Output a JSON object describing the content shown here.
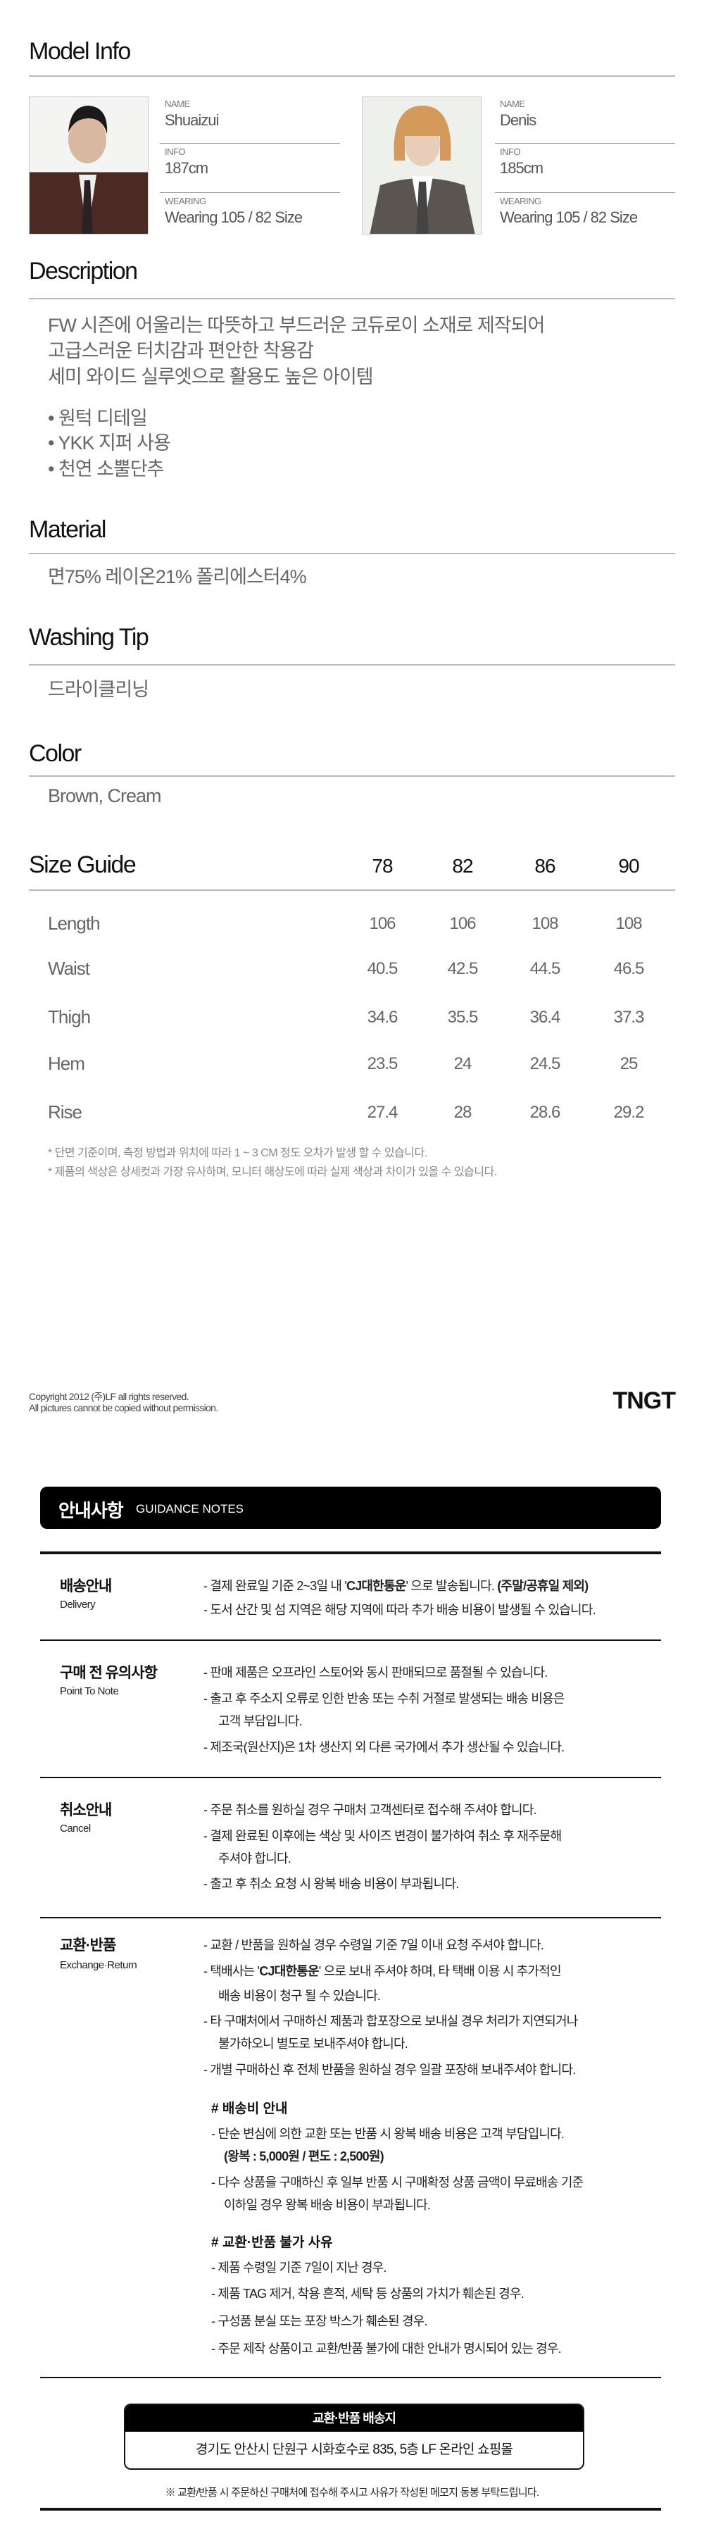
{
  "model_info": {
    "title": "Model Info",
    "models": [
      {
        "name_label": "NAME",
        "name": "Shuaizui",
        "info_label": "INFO",
        "info": "187cm",
        "wearing_label": "WEARING",
        "wearing": "Wearing 105 / 82 Size"
      },
      {
        "name_label": "NAME",
        "name": "Denis",
        "info_label": "INFO",
        "info": "185cm",
        "wearing_label": "WEARING",
        "wearing": "Wearing 105 / 82 Size"
      }
    ]
  },
  "description": {
    "title": "Description",
    "lines": [
      "FW 시즌에 어울리는 따뜻하고 부드러운 코듀로이 소재로 제작되어",
      "고급스러운 터치감과 편안한 착용감",
      "세미 와이드 실루엣으로 활용도 높은 아이템"
    ],
    "bullets": [
      "• 원턱 디테일",
      "• YKK 지퍼 사용",
      "• 천연 소뿔단추"
    ]
  },
  "material": {
    "title": "Material",
    "text": "면75% 레이온21% 폴리에스터4%"
  },
  "washing": {
    "title": "Washing Tip",
    "text": "드라이클리닝"
  },
  "color": {
    "title": "Color",
    "text": "Brown, Cream"
  },
  "size_guide": {
    "title": "Size Guide",
    "sizes": [
      "78",
      "82",
      "86",
      "90"
    ],
    "rows": [
      {
        "label": "Length",
        "values": [
          "106",
          "106",
          "108",
          "108"
        ]
      },
      {
        "label": "Waist",
        "values": [
          "40.5",
          "42.5",
          "44.5",
          "46.5"
        ]
      },
      {
        "label": "Thigh",
        "values": [
          "34.6",
          "35.5",
          "36.4",
          "37.3"
        ]
      },
      {
        "label": "Hem",
        "values": [
          "23.5",
          "24",
          "24.5",
          "25"
        ]
      },
      {
        "label": "Rise",
        "values": [
          "27.4",
          "28",
          "28.6",
          "29.2"
        ]
      }
    ],
    "notes": [
      "* 단면 기준이며, 측정 방법과 위치에 따라 1 ~ 3 CM 정도 오차가 발생 할 수 있습니다.",
      "* 제품의 색상은 상세컷과 가장 유사하며, 모니터 해상도에 따라 실제 색상과 차이가 있을 수 있습니다."
    ]
  },
  "footer": {
    "copyright": "Copyright 2012 (주)LF all rights reserved.",
    "permission": "All pictures cannot be copied without permission.",
    "logo": "TNGT"
  },
  "guidance": {
    "title_ko": "안내사항",
    "title_en": "GUIDANCE NOTES",
    "delivery": {
      "label": "배송안내",
      "sub": "Delivery",
      "i1a": "- 결제 완료일 기준 2~3일 내 '",
      "i1b": "CJ대한통운",
      "i1c": "' 으로 발송됩니다. ",
      "i1d": "(주말/공휴일 제외)",
      "i2": "- 도서 산간 및 섬 지역은 해당 지역에 따라 추가 배송 비용이 발생될 수 있습니다."
    },
    "point": {
      "label": "구매 전 유의사항",
      "sub": "Point To Note",
      "items": [
        "- 판매 제품은 오프라인 스토어와 동시 판매되므로 품절될 수 있습니다.",
        "- 출고 후 주소지 오류로 인한 반송 또는 수취 거절로 발생되는 배송 비용은",
        "고객 부담입니다.",
        "- 제조국(원산지)은 1차 생산지 외 다른 국가에서 추가 생산될 수 있습니다."
      ]
    },
    "cancel": {
      "label": "취소안내",
      "sub": "Cancel",
      "items": [
        "- 주문 취소를 원하실 경우 구매처 고객센터로 접수해 주셔야 합니다.",
        "- 결제 완료된 이후에는 색상 및 사이즈 변경이 불가하여 취소 후 재주문해",
        "주셔야 합니다.",
        "- 출고 후 취소 요청 시 왕복 배송 비용이 부과됩니다."
      ]
    },
    "exchange": {
      "label": "교환·반품",
      "sub": "Exchange·Return",
      "i1": "- 교환 / 반품을 원하실 경우 수령일 기준 7일 이내 요청 주셔야 합니다.",
      "i2a": "- 택배사는 '",
      "i2b": "CJ대한통운",
      "i2c": "' 으로 보내 주셔야 하며, 타 택배 이용 시 추가적인",
      "i2d": "배송 비용이 청구 될 수 있습니다.",
      "i3": "- 타 구매처에서 구매하신 제품과 합포장으로 보내실 경우 처리가 지연되거나",
      "i3b": "불가하오니 별도로 보내주셔야 합니다.",
      "i4": "- 개별 구매하신 후 전체 반품을 원하실 경우 일괄 포장해 보내주셔야 합니다.",
      "fee_title": "# 배송비 안내",
      "fee": [
        "- 단순 변심에 의한 교환 또는 반품 시 왕복 배송 비용은 고객 부담입니다.",
        "(왕복 : 5,000원 / 편도 : 2,500원)",
        "- 다수 상품을 구매하신 후 일부 반품 시 구매확정 상품 금액이 무료배송 기준",
        "이하일 경우 왕복 배송 비용이 부과됩니다."
      ],
      "no_title": "# 교환·반품 불가 사유",
      "no": [
        "- 제품 수령일 기준 7일이 지난 경우.",
        "- 제품 TAG 제거, 착용 흔적, 세탁 등 상품의 가치가 훼손된 경우.",
        "- 구성품 분실 또는 포장 박스가 훼손된 경우.",
        "- 주문 제작 상품이고 교환/반품 불가에 대한 안내가 명시되어 있는 경우."
      ]
    },
    "address": {
      "title": "교환·반품 배송지",
      "text": "경기도 안산시 단원구 시화호수로 835, 5층 LF 온라인 쇼핑몰",
      "note": "※ 교환/반품 시 주문하신 구매처에 접수해 주시고 사유가 작성된 메모지 동봉 부탁드립니다."
    }
  }
}
